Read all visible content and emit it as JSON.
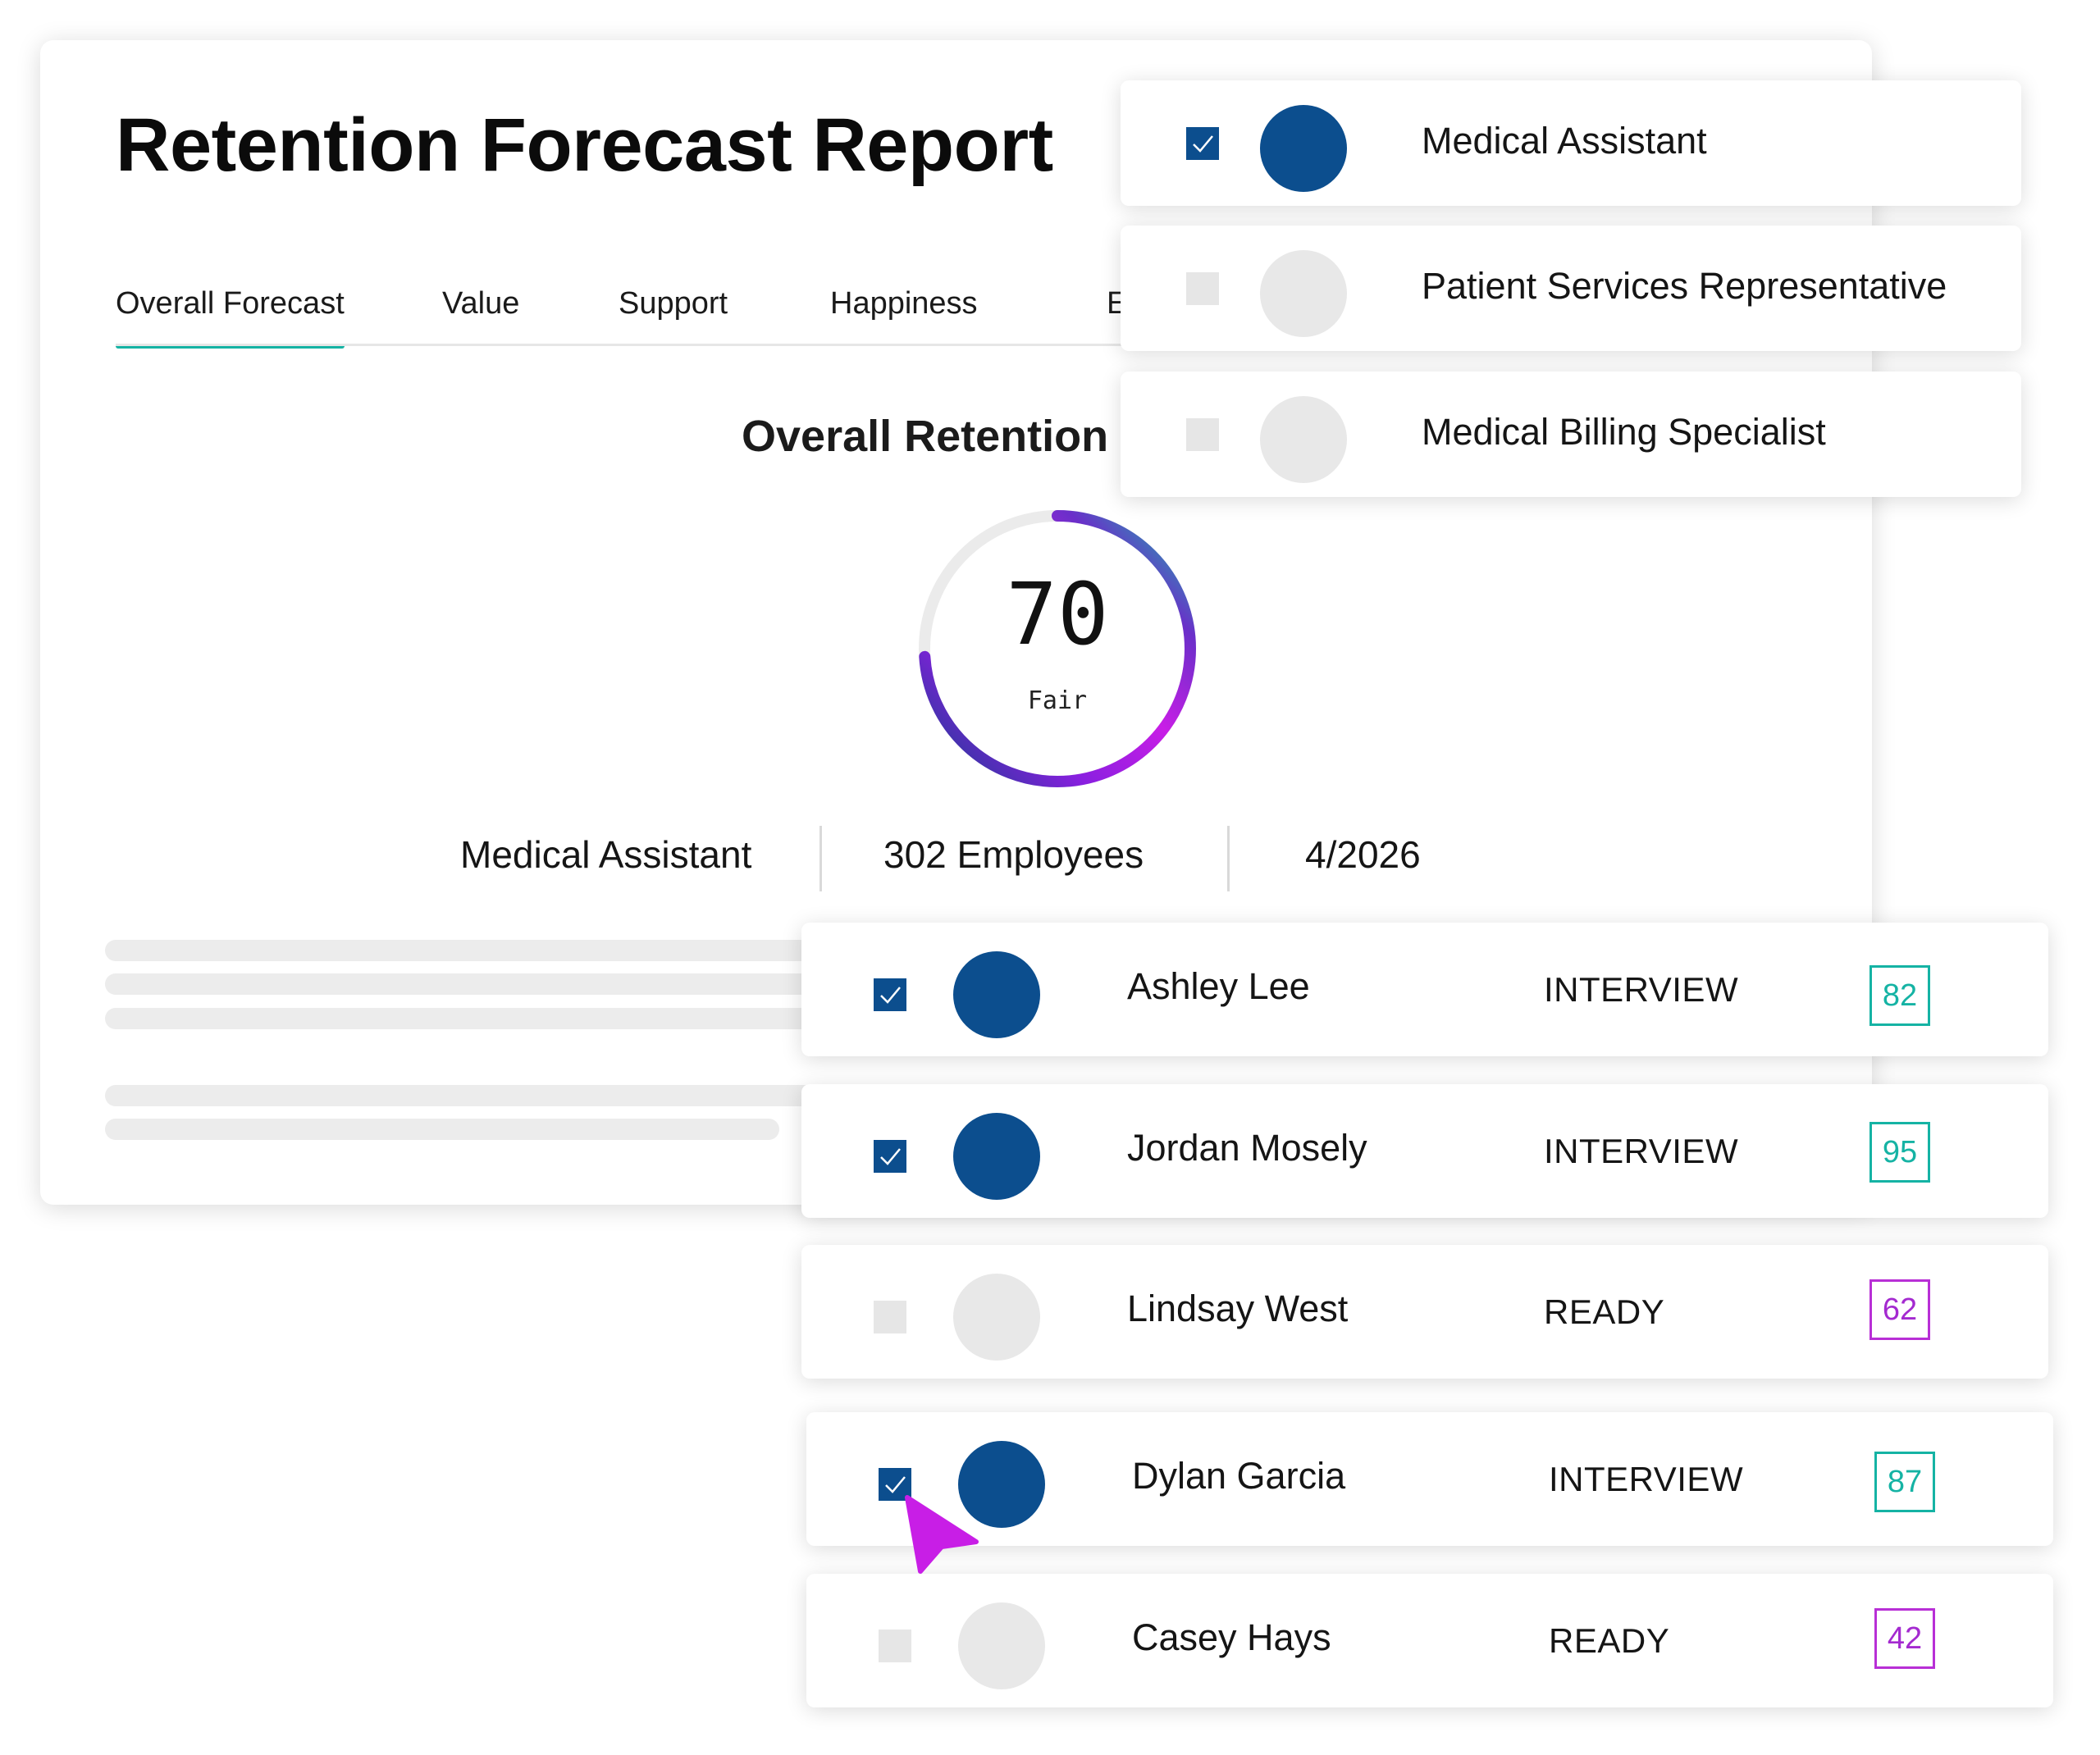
{
  "report": {
    "title": "Retention Forecast Report",
    "tabs": [
      {
        "label": "Overall Forecast",
        "active": true
      },
      {
        "label": "Value"
      },
      {
        "label": "Support"
      },
      {
        "label": "Happiness"
      },
      {
        "label": "En"
      }
    ],
    "section_title": "Overall Retention F",
    "gauge": {
      "value": "70",
      "label": "Fair",
      "fill_fraction": 0.74
    },
    "summary": {
      "role": "Medical Assistant",
      "employees": "302 Employees",
      "date": "4/2026"
    }
  },
  "roles": [
    {
      "label": "Medical Assistant",
      "checked": true
    },
    {
      "label": "Patient Services Representative",
      "checked": false
    },
    {
      "label": "Medical Billing Specialist",
      "checked": false
    }
  ],
  "people": [
    {
      "name": "Ashley Lee",
      "status": "INTERVIEW",
      "score": "82",
      "checked": true
    },
    {
      "name": "Jordan Mosely",
      "status": "INTERVIEW",
      "score": "95",
      "checked": true
    },
    {
      "name": "Lindsay West",
      "status": "READY",
      "score": "62",
      "checked": false
    },
    {
      "name": "Dylan Garcia",
      "status": "INTERVIEW",
      "score": "87",
      "checked": true
    },
    {
      "name": "Casey Hays",
      "status": "READY",
      "score": "42",
      "checked": false
    }
  ],
  "colors": {
    "teal": "#15b3a4",
    "navy": "#0c4e8e",
    "magenta": "#c81ee6",
    "purple": "#a42ad0"
  },
  "icons": {
    "checkbox_checked": "check-icon",
    "cursor": "cursor-arrow-icon"
  }
}
